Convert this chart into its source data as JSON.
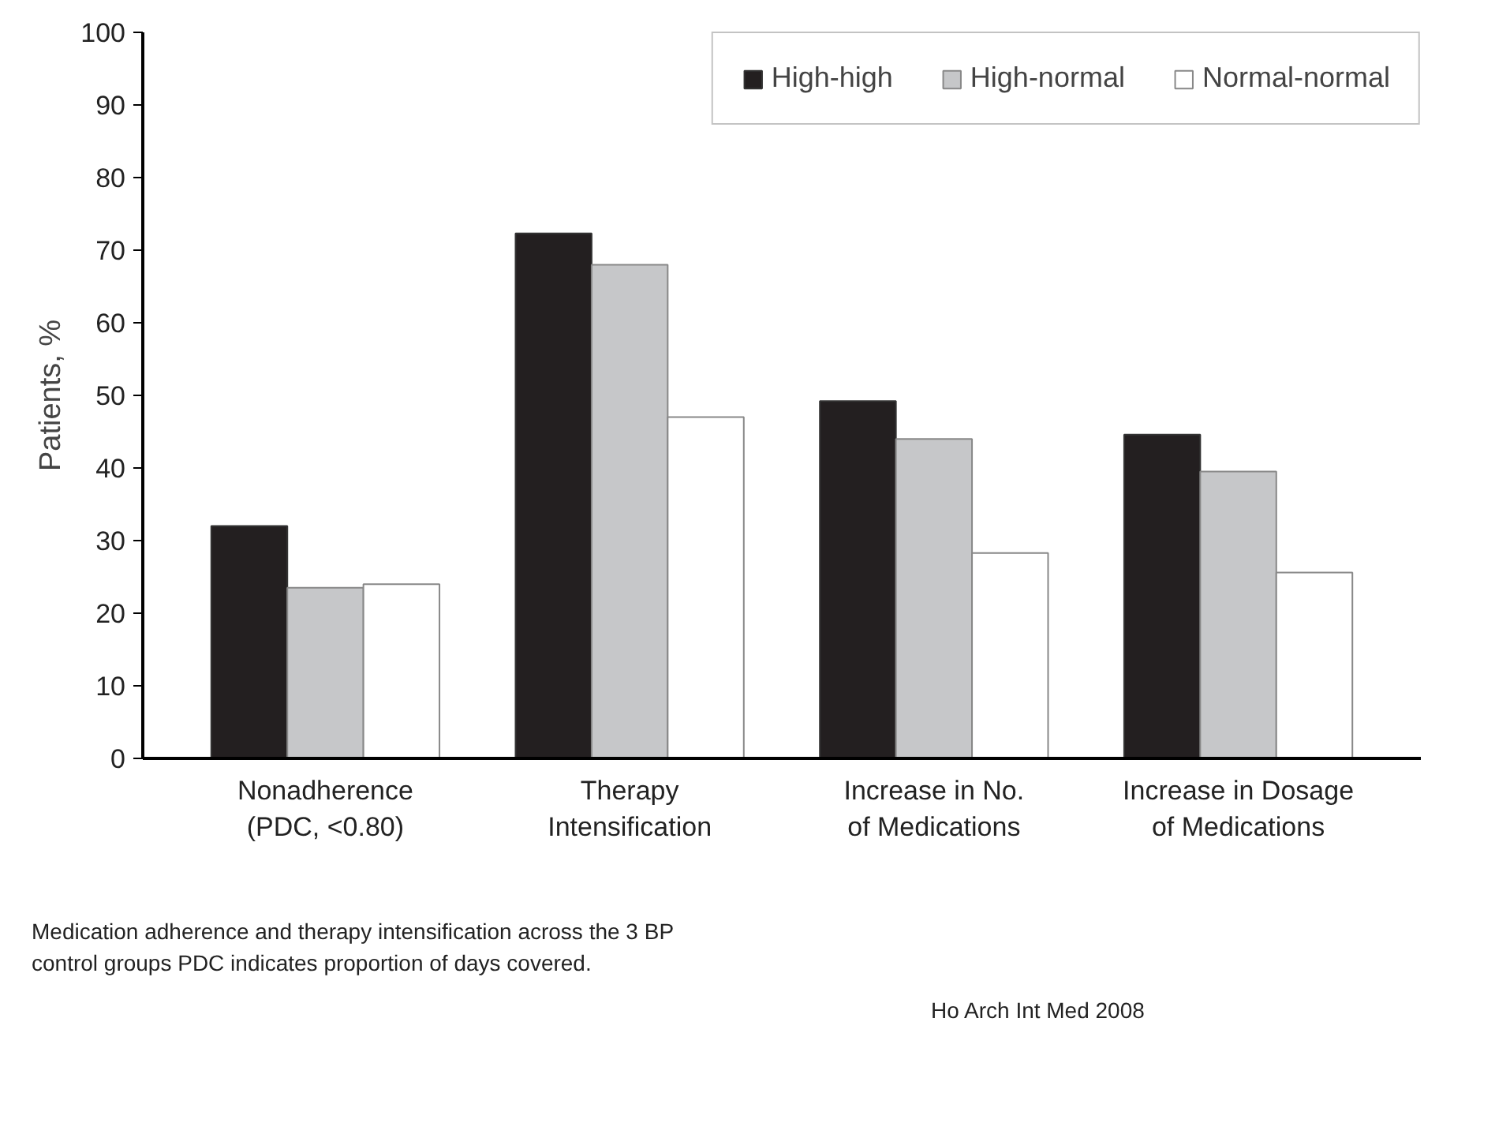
{
  "chart_data": {
    "type": "bar",
    "ylabel": "Patients, %",
    "categories": [
      "Nonadherence\n(PDC, <0.80)",
      "Therapy\nIntensification",
      "Increase in No.\nof Medications",
      "Increase in Dosage\nof Medications"
    ],
    "series": [
      {
        "name": "High-high",
        "color": "#231f20",
        "values": [
          32,
          72.3,
          49.2,
          44.6
        ]
      },
      {
        "name": "High-normal",
        "color": "#c6c7c9",
        "values": [
          23.5,
          68,
          44,
          39.5
        ]
      },
      {
        "name": "Normal-normal",
        "color": "#ffffff",
        "values": [
          24,
          47,
          28.3,
          25.6
        ]
      }
    ],
    "ylim": [
      0,
      100
    ],
    "yticks": [
      0,
      10,
      20,
      30,
      40,
      50,
      60,
      70,
      80,
      90,
      100
    ],
    "grid": false,
    "legend": "top right",
    "annotations": [
      "Medication adherence and therapy intensification across the 3 BP\ncontrol groups  PDC indicates proportion of days covered.",
      "Ho  Arch Int Med 2008"
    ]
  }
}
